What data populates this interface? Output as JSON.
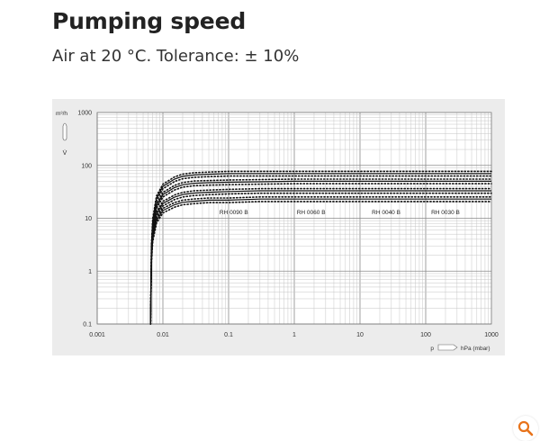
{
  "header": {
    "title": "Pumping speed",
    "subtitle": "Air at 20 °C. Tolerance: ± 10%"
  },
  "colors": {
    "panel_bg": "#ececec",
    "grid": "#b5b5b5",
    "curve": "#111111",
    "zoom_accent": "#e8731a"
  },
  "icons": {
    "zoom": "magnifier-icon",
    "y_axis_symbol": "pump-outline-icon",
    "x_axis_symbol": "pipe-icon"
  },
  "chart_data": {
    "type": "line",
    "x_scale": "log",
    "y_scale": "log",
    "xlim": [
      0.001,
      1000
    ],
    "ylim": [
      0.1,
      1000
    ],
    "x_ticks": [
      "0.001",
      "0.01",
      "0.1",
      "1",
      "10",
      "100",
      "1000"
    ],
    "y_ticks": [
      "0.1",
      "1",
      "10",
      "100",
      "1000"
    ],
    "y_unit": "m³/h",
    "y_symbol": "V̇",
    "x_symbol": "p",
    "x_unit": "hPa (mbar)",
    "grid": true,
    "x": [
      0.0065,
      0.0067,
      0.007,
      0.008,
      0.01,
      0.015,
      0.02,
      0.03,
      0.05,
      0.1,
      0.3,
      1,
      3,
      10,
      100,
      1000
    ],
    "series": [
      {
        "name": "RH 0090 B",
        "values": [
          0.1,
          3,
          9,
          24,
          40,
          55,
          62,
          66,
          68,
          70,
          70,
          70,
          70,
          70,
          70,
          70
        ]
      },
      {
        "name": "RH 0060 B",
        "values": [
          0.1,
          2.5,
          7,
          17,
          28,
          38,
          43,
          46,
          47,
          48,
          49,
          50,
          50,
          50,
          50,
          50
        ]
      },
      {
        "name": "RH 0040 B",
        "values": [
          0.1,
          2,
          5,
          12,
          19,
          25,
          28,
          30,
          31,
          32,
          33,
          33,
          33,
          33,
          33,
          33
        ]
      },
      {
        "name": "RH 0030 B",
        "values": [
          0.1,
          1.7,
          4,
          9,
          14,
          18,
          20,
          21,
          22,
          22,
          23,
          23,
          23,
          23,
          23,
          23
        ]
      }
    ],
    "tolerance": 0.1
  }
}
